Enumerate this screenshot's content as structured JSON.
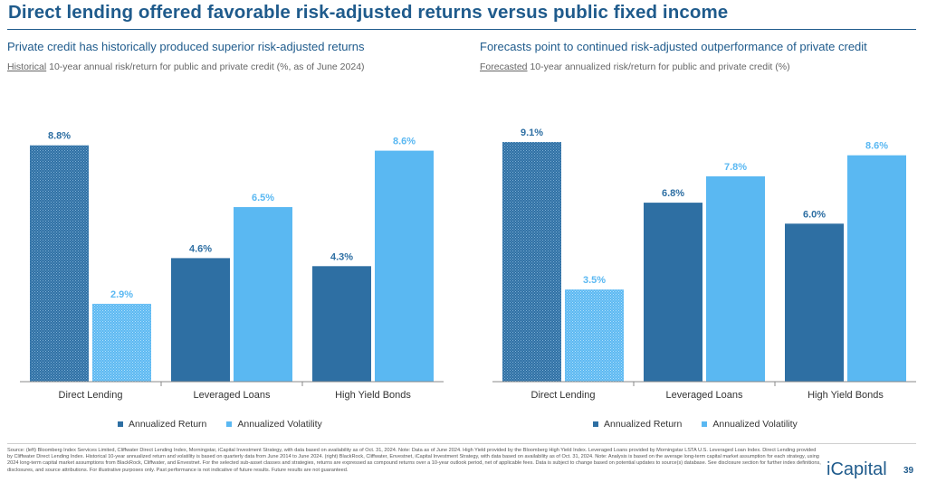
{
  "page": {
    "title": "Direct lending offered favorable risk-adjusted returns versus public fixed income",
    "footnote": "Source: (left) Bloomberg Index Services Limited, Cliffwater Direct Lending Index, Morningstar, iCapital Investment Strategy, with data based on availability as of Oct. 31, 2024. Note: Data as of June 2024. High Yield provided by the Bloomberg High Yield Index. Leveraged Loans provided by Morningstar LSTA U.S. Leveraged Loan Index. Direct Lending provided by Cliffwater Direct Lending Index. Historical 10-year annualized return and volatility is based on quarterly data from June 2014 to June 2024. (right) BlackRock, Cliffwater, Envestnet, iCapital Investment Strategy, with data based on availability as of Oct. 31, 2024. Note: Analysis is based on the average long-term capital market assumption for each strategy, using 2024 long-term capital market assumptions from BlackRock, Cliffwater, and Envestnet. For the selected sub-asset classes and strategies, returns are expressed as compound returns over a 10-year outlook period, net of applicable fees. Data is subject to change based on potential updates to source(s) database. See disclosure section for further index definitions, disclosures, and source attributions. For illustrative purposes only. Past performance is not indicative of future results. Future results are not guaranteed.",
    "logo": "iCapital",
    "page_number": "39"
  },
  "left": {
    "subtitle": "Private credit has historically produced superior risk-adjusted returns",
    "desc_underlined": "Historical",
    "desc_rest": " 10-year annual risk/return for public and private credit (%, as of June 2024)"
  },
  "right": {
    "subtitle": "Forecasts point to continued risk-adjusted outperformance of private credit",
    "desc_underlined": "Forecasted",
    "desc_rest": " 10-year annualized risk/return for public and private credit (%)"
  },
  "legend": {
    "return_label": "Annualized Return",
    "volatility_label": "Annualized Volatility"
  },
  "colors": {
    "return": "#2e6fa3",
    "volatility": "#5ab8f2",
    "title": "#1f5b8c",
    "axis": "#888888"
  },
  "chart_data": [
    {
      "type": "bar",
      "categories": [
        "Direct Lending",
        "Leveraged Loans",
        "High Yield Bonds"
      ],
      "series": [
        {
          "name": "Annualized Return",
          "values": [
            8.8,
            4.6,
            4.3
          ],
          "labels": [
            "8.8%",
            "4.6%",
            "4.3%"
          ]
        },
        {
          "name": "Annualized Volatility",
          "values": [
            2.9,
            6.5,
            8.6
          ],
          "labels": [
            "2.9%",
            "6.5%",
            "8.6%"
          ]
        }
      ],
      "ylim": [
        0,
        9.9
      ],
      "grid": false,
      "legend": "bottom-center",
      "patterned_category": "Direct Lending"
    },
    {
      "type": "bar",
      "categories": [
        "Direct Lending",
        "Leveraged Loans",
        "High Yield Bonds"
      ],
      "series": [
        {
          "name": "Annualized Return",
          "values": [
            9.1,
            6.8,
            6.0
          ],
          "labels": [
            "9.1%",
            "6.8%",
            "6.0%"
          ]
        },
        {
          "name": "Annualized Volatility",
          "values": [
            3.5,
            7.8,
            8.6
          ],
          "labels": [
            "3.5%",
            "7.8%",
            "8.6%"
          ]
        }
      ],
      "ylim": [
        0,
        10.1
      ],
      "grid": false,
      "legend": "bottom-center",
      "patterned_category": "Direct Lending"
    }
  ]
}
